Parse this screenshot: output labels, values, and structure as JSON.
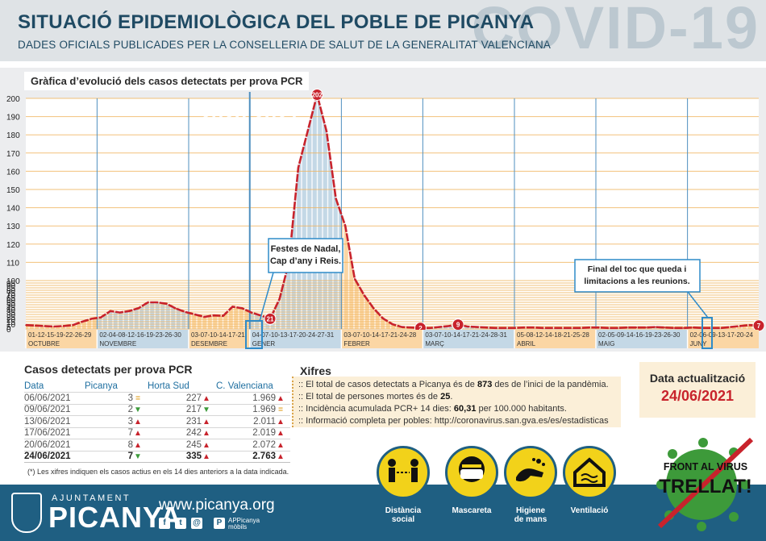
{
  "header": {
    "title": "SITUACIÓ EPIDEMIOLÒGICA DEL POBLE DE PICANYA",
    "subtitle": "DADES OFICIALS PUBLICADES PER LA CONSELLERIA DE SALUT DE LA GENERALITAT VALENCIANA",
    "covid_watermark": "COVID-19"
  },
  "chart_panel": {
    "title": "Gràfica d’evolució dels casos detectats per prova PCR",
    "year_labels": [
      "2020",
      "2021"
    ],
    "annotations": [
      {
        "text_lines": [
          "Festes de Nadal,",
          "Cap d’any i Reis."
        ]
      },
      {
        "text_lines": [
          "Final del toc que queda i",
          "limitacions a les reunions."
        ]
      }
    ],
    "marker_labels": [
      "21",
      "202",
      "2",
      "9",
      "7"
    ]
  },
  "chart_data": {
    "type": "area",
    "title": "Gràfica d’evolució dels casos detectats per prova PCR",
    "ylim": [
      0,
      200
    ],
    "yticks": [
      0,
      5,
      10,
      15,
      20,
      25,
      30,
      35,
      40,
      45,
      50,
      55,
      60,
      65,
      70,
      75,
      80,
      85,
      90,
      95,
      100,
      110,
      120,
      130,
      140,
      150,
      160,
      170,
      180,
      190,
      200
    ],
    "grid": true,
    "months": [
      {
        "name": "OCTUBRE",
        "days": [
          "01",
          "12",
          "15",
          "19",
          "22",
          "26",
          "29"
        ],
        "color": "#fbd6a4"
      },
      {
        "name": "NOVEMBRE",
        "days": [
          "02",
          "04",
          "08",
          "12",
          "16",
          "19",
          "23",
          "26",
          "30"
        ],
        "color": "#c4d8e6"
      },
      {
        "name": "DESEMBRE",
        "days": [
          "03",
          "07",
          "10",
          "14",
          "17",
          "21"
        ],
        "color": "#fbd6a4"
      },
      {
        "name": "GENER",
        "days": [
          "04",
          "07",
          "10",
          "13",
          "17",
          "20",
          "24",
          "27",
          "31"
        ],
        "color": "#c4d8e6"
      },
      {
        "name": "FEBRER",
        "days": [
          "03",
          "07",
          "10",
          "14",
          "17",
          "21",
          "24",
          "28"
        ],
        "color": "#fbd6a4"
      },
      {
        "name": "MARÇ",
        "days": [
          "03",
          "07",
          "10",
          "14",
          "17",
          "21",
          "24",
          "28",
          "31"
        ],
        "color": "#c4d8e6"
      },
      {
        "name": "ABRIL",
        "days": [
          "05",
          "08",
          "12",
          "14",
          "18",
          "21",
          "25",
          "28"
        ],
        "color": "#fbd6a4"
      },
      {
        "name": "MAIG",
        "days": [
          "02",
          "05",
          "09",
          "14",
          "16",
          "19",
          "23",
          "26",
          "30"
        ],
        "color": "#c4d8e6"
      },
      {
        "name": "JUNY",
        "days": [
          "02",
          "06",
          "09",
          "13",
          "17",
          "20",
          "24"
        ],
        "color": "#fbd6a4"
      }
    ],
    "series": [
      {
        "values": [
          8,
          7,
          6,
          5,
          6,
          8,
          15,
          21,
          24,
          37,
          34,
          37,
          43,
          55,
          55,
          52,
          42,
          35,
          30,
          25,
          28,
          27,
          46,
          43,
          34,
          28,
          21,
          62,
          110,
          162,
          182,
          202,
          182,
          145,
          130,
          101,
          70,
          43,
          22,
          10,
          4,
          3,
          2,
          2,
          4,
          6,
          9,
          5,
          4,
          3,
          2,
          2,
          2,
          3,
          3,
          2,
          2,
          2,
          2,
          2,
          3,
          3,
          2,
          2,
          3,
          3,
          3,
          4,
          3,
          2,
          2,
          3,
          2,
          2,
          2,
          4,
          6,
          8,
          7
        ],
        "color": "#c8232c"
      }
    ]
  },
  "table": {
    "title": "Casos detectats per prova PCR",
    "headers": [
      "Data",
      "Picanya",
      "Horta Sud",
      "C. Valenciana"
    ],
    "rows": [
      {
        "date": "06/06/2021",
        "picanya": "3",
        "pic_trend": "eq",
        "horta": "227",
        "horta_trend": "up",
        "cv": "1.969",
        "cv_trend": "up"
      },
      {
        "date": "09/06/2021",
        "picanya": "2",
        "pic_trend": "down",
        "horta": "217",
        "horta_trend": "down",
        "cv": "1.969",
        "cv_trend": "eq"
      },
      {
        "date": "13/06/2021",
        "picanya": "3",
        "pic_trend": "up",
        "horta": "231",
        "horta_trend": "up",
        "cv": "2.011",
        "cv_trend": "up"
      },
      {
        "date": "17/06/2021",
        "picanya": "7",
        "pic_trend": "up",
        "horta": "242",
        "horta_trend": "up",
        "cv": "2.019",
        "cv_trend": "up"
      },
      {
        "date": "20/06/2021",
        "picanya": "8",
        "pic_trend": "up",
        "horta": "245",
        "horta_trend": "up",
        "cv": "2.072",
        "cv_trend": "up"
      },
      {
        "date": "24/06/2021",
        "picanya": "7",
        "pic_trend": "down",
        "horta": "335",
        "horta_trend": "up",
        "cv": "2.763",
        "cv_trend": "up",
        "bold": true
      }
    ],
    "footnote": "(*) Les xifres indiquen els casos actius en els 14 dies anteriors a la data indicada."
  },
  "xifres": {
    "title": "Xifres",
    "lines": [
      {
        "pre": ":: El total de casos detectats a Picanya és de ",
        "bold": "873",
        "post": " des de l’inici de la pandèmia."
      },
      {
        "pre": ":: El total de persones mortes és de ",
        "bold": "25",
        "post": "."
      },
      {
        "pre": ":: Incidència acumulada PCR+ 14 dies: ",
        "bold": "60,31",
        "post": " per 100.000 habitants."
      },
      {
        "pre": ":: Informació completa per pobles: http://coronavirus.san.gva.es/es/estadisticas",
        "bold": "",
        "post": ""
      }
    ]
  },
  "update": {
    "label": "Data actualització",
    "date": "24/06/2021"
  },
  "footer": {
    "ajuntament": "AJUNTAMENT",
    "town": "PICANYA",
    "website": "www.picanya.org",
    "app_label_1": "APPicanya",
    "app_label_2": "mòbils",
    "social_icons": [
      "facebook-icon",
      "twitter-icon",
      "email-icon"
    ]
  },
  "measures": [
    {
      "label_1": "Distància",
      "label_2": "social",
      "icon": "distance-icon"
    },
    {
      "label_1": "Mascareta",
      "label_2": "",
      "icon": "mask-icon"
    },
    {
      "label_1": "Higiene",
      "label_2": "de mans",
      "icon": "handwash-icon"
    },
    {
      "label_1": "Ventilació",
      "label_2": "",
      "icon": "ventilation-icon"
    }
  ],
  "badge": {
    "line1": "FRONT AL VIRUS",
    "line2": "TRELLAT!"
  },
  "colors": {
    "line": "#c8232c",
    "orange_fill": "#fbd6a4",
    "blue_fill": "#c4d8e6",
    "header_text": "#1f4a63",
    "footer_bg": "#1f5f82",
    "accent_red": "#c8232c"
  }
}
